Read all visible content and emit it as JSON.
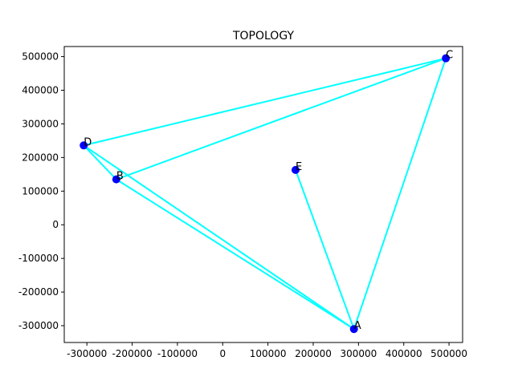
{
  "chart_data": {
    "type": "scatter",
    "title": "TOPOLOGY",
    "xlabel": "",
    "ylabel": "",
    "xlim": [
      -350000,
      530000
    ],
    "ylim": [
      -350000,
      530000
    ],
    "xticks": [
      -300000,
      -200000,
      -100000,
      0,
      100000,
      200000,
      300000,
      400000,
      500000
    ],
    "yticks": [
      -300000,
      -200000,
      -100000,
      0,
      100000,
      200000,
      300000,
      400000,
      500000
    ],
    "grid": false,
    "nodes": [
      {
        "label": "A",
        "x": 290000,
        "y": -310000
      },
      {
        "label": "B",
        "x": -235000,
        "y": 135000
      },
      {
        "label": "C",
        "x": 493000,
        "y": 495000
      },
      {
        "label": "D",
        "x": -307000,
        "y": 236000
      },
      {
        "label": "E",
        "x": 161000,
        "y": 163000
      }
    ],
    "edges": [
      [
        "D",
        "C"
      ],
      [
        "B",
        "C"
      ],
      [
        "D",
        "B"
      ],
      [
        "D",
        "A"
      ],
      [
        "B",
        "A"
      ],
      [
        "E",
        "A"
      ],
      [
        "A",
        "C"
      ]
    ],
    "colors": {
      "edge": "#00ffff",
      "node": "#0000ff"
    }
  }
}
